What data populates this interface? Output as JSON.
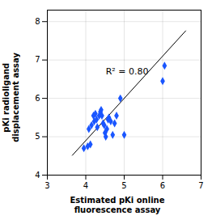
{
  "chart_data": {
    "type": "scatter",
    "x": [
      3.95,
      4.05,
      4.08,
      4.12,
      4.15,
      4.2,
      4.22,
      4.25,
      4.28,
      4.3,
      4.35,
      4.38,
      4.4,
      4.42,
      4.45,
      4.48,
      4.5,
      4.52,
      4.55,
      4.58,
      4.6,
      4.65,
      4.7,
      4.75,
      4.8,
      4.9,
      5.0,
      6.0,
      6.05
    ],
    "y": [
      4.7,
      4.75,
      5.2,
      4.8,
      5.3,
      5.55,
      5.4,
      5.6,
      5.45,
      5.25,
      5.55,
      5.65,
      5.7,
      5.55,
      5.35,
      5.3,
      5.1,
      5.0,
      5.2,
      5.45,
      5.5,
      5.4,
      5.05,
      5.35,
      5.55,
      6.0,
      5.05,
      6.45,
      6.85
    ],
    "color": "#1a56ff",
    "marker": "diamond",
    "fit_line": {
      "x": [
        3.65,
        6.6
      ],
      "y": [
        4.515,
        7.76
      ],
      "color": "black"
    },
    "annotations": [
      {
        "text": "R² = 0.80",
        "x": 4.52,
        "y": 6.78
      }
    ],
    "xlabel": "Estimated pKi online\nfluorescence assay",
    "ylabel": "pKi radioligand\ndisplacement assay",
    "xlim": [
      3,
      7
    ],
    "ylim": [
      4,
      8.3
    ],
    "xticks": [
      3,
      4,
      5,
      6,
      7
    ],
    "yticks": [
      4,
      5,
      6,
      7,
      8
    ],
    "grid": true
  }
}
